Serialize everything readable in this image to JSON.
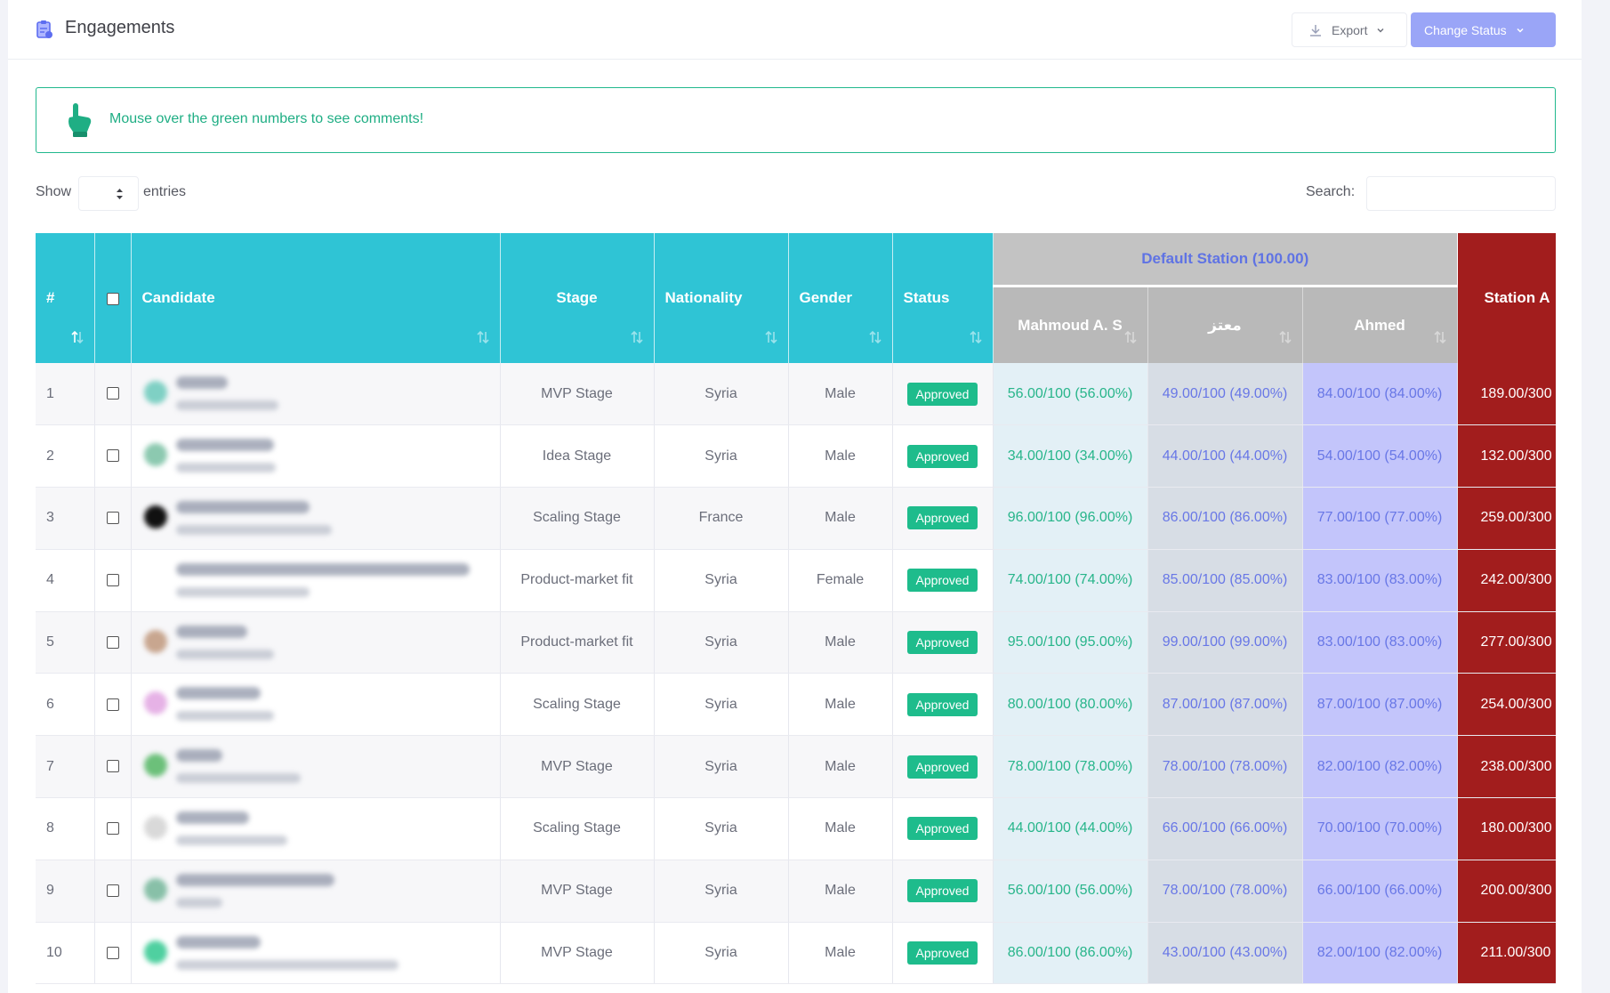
{
  "header": {
    "title": "Engagements",
    "export_label": "Export",
    "change_status_label": "Change Status"
  },
  "alert": {
    "text": "Mouse over the green numbers to see comments!"
  },
  "controls": {
    "show_label": "Show",
    "entries_label": "entries",
    "search_label": "Search:"
  },
  "table": {
    "columns": {
      "num": "#",
      "candidate": "Candidate",
      "stage": "Stage",
      "nationality": "Nationality",
      "gender": "Gender",
      "status": "Status"
    },
    "group_header": "Default Station (100.00)",
    "judges": [
      "Mahmoud A. S",
      "معتز",
      "Ahmed"
    ],
    "station_header": "Station A",
    "rows": [
      {
        "num": "1",
        "stage": "MVP Stage",
        "nationality": "Syria",
        "gender": "Male",
        "status": "Approved",
        "s1": "56.00/100 (56.00%)",
        "s2": "49.00/100 (49.00%)",
        "s3": "84.00/100 (84.00%)",
        "station": "189.00/300"
      },
      {
        "num": "2",
        "stage": "Idea Stage",
        "nationality": "Syria",
        "gender": "Male",
        "status": "Approved",
        "s1": "34.00/100 (34.00%)",
        "s2": "44.00/100 (44.00%)",
        "s3": "54.00/100 (54.00%)",
        "station": "132.00/300"
      },
      {
        "num": "3",
        "stage": "Scaling Stage",
        "nationality": "France",
        "gender": "Male",
        "status": "Approved",
        "s1": "96.00/100 (96.00%)",
        "s2": "86.00/100 (86.00%)",
        "s3": "77.00/100 (77.00%)",
        "station": "259.00/300"
      },
      {
        "num": "4",
        "stage": "Product-market fit",
        "nationality": "Syria",
        "gender": "Female",
        "status": "Approved",
        "s1": "74.00/100 (74.00%)",
        "s2": "85.00/100 (85.00%)",
        "s3": "83.00/100 (83.00%)",
        "station": "242.00/300"
      },
      {
        "num": "5",
        "stage": "Product-market fit",
        "nationality": "Syria",
        "gender": "Male",
        "status": "Approved",
        "s1": "95.00/100 (95.00%)",
        "s2": "99.00/100 (99.00%)",
        "s3": "83.00/100 (83.00%)",
        "station": "277.00/300"
      },
      {
        "num": "6",
        "stage": "Scaling Stage",
        "nationality": "Syria",
        "gender": "Male",
        "status": "Approved",
        "s1": "80.00/100 (80.00%)",
        "s2": "87.00/100 (87.00%)",
        "s3": "87.00/100 (87.00%)",
        "station": "254.00/300"
      },
      {
        "num": "7",
        "stage": "MVP Stage",
        "nationality": "Syria",
        "gender": "Male",
        "status": "Approved",
        "s1": "78.00/100 (78.00%)",
        "s2": "78.00/100 (78.00%)",
        "s3": "82.00/100 (82.00%)",
        "station": "238.00/300"
      },
      {
        "num": "8",
        "stage": "Scaling Stage",
        "nationality": "Syria",
        "gender": "Male",
        "status": "Approved",
        "s1": "44.00/100 (44.00%)",
        "s2": "66.00/100 (66.00%)",
        "s3": "70.00/100 (70.00%)",
        "station": "180.00/300"
      },
      {
        "num": "9",
        "stage": "MVP Stage",
        "nationality": "Syria",
        "gender": "Male",
        "status": "Approved",
        "s1": "56.00/100 (56.00%)",
        "s2": "78.00/100 (78.00%)",
        "s3": "66.00/100 (66.00%)",
        "station": "200.00/300"
      },
      {
        "num": "10",
        "stage": "MVP Stage",
        "nationality": "Syria",
        "gender": "Male",
        "status": "Approved",
        "s1": "86.00/100 (86.00%)",
        "s2": "43.00/100 (43.00%)",
        "s3": "82.00/100 (82.00%)",
        "station": "211.00/300"
      }
    ]
  },
  "colors": {
    "header_teal": "#2fc4d5",
    "approved_green": "#1ebc8c",
    "station_red": "#a21d1d",
    "primary_button": "#9aa5f7"
  },
  "icons": {
    "header": "clipboard-icon",
    "alert": "pointing-hand-icon",
    "export": "download-icon"
  }
}
